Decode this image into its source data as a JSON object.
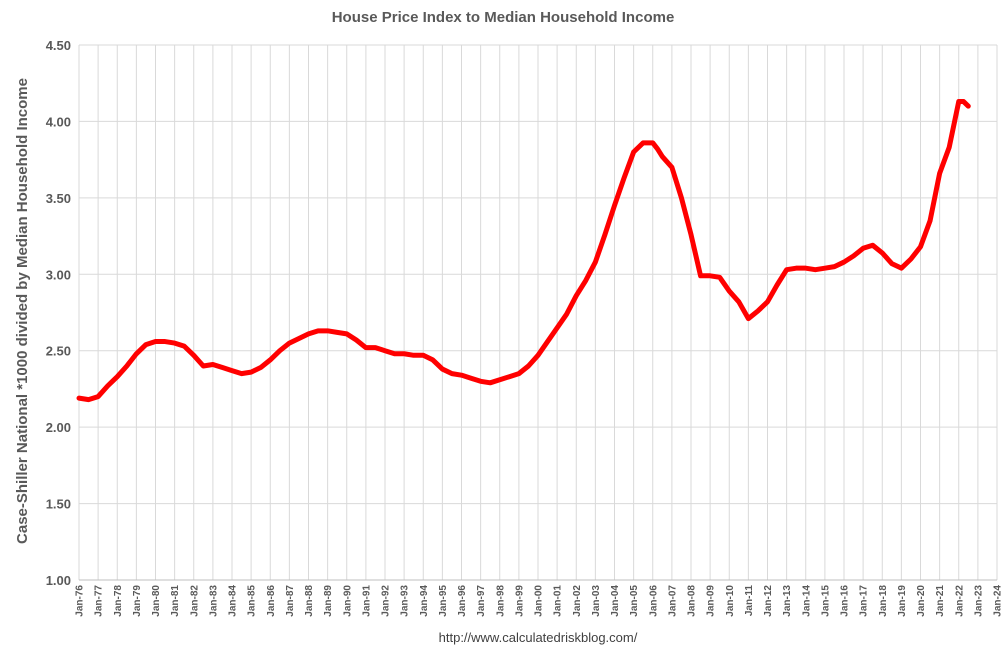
{
  "chart_data": {
    "type": "line",
    "title": "House Price Index to Median Household Income",
    "ylabel": "Case-Shiller National *1000 divided by Median Household Income",
    "xlabel": "",
    "source_text": "http://www.calculatedriskblog.com/",
    "ylim": [
      1.0,
      4.5
    ],
    "yticks": [
      "1.00",
      "1.50",
      "2.00",
      "2.50",
      "3.00",
      "3.50",
      "4.00",
      "4.50"
    ],
    "xticks": [
      "Jan-76",
      "Jan-77",
      "Jan-78",
      "Jan-79",
      "Jan-80",
      "Jan-81",
      "Jan-82",
      "Jan-83",
      "Jan-84",
      "Jan-85",
      "Jan-86",
      "Jan-87",
      "Jan-88",
      "Jan-89",
      "Jan-90",
      "Jan-91",
      "Jan-92",
      "Jan-93",
      "Jan-94",
      "Jan-95",
      "Jan-96",
      "Jan-97",
      "Jan-98",
      "Jan-99",
      "Jan-00",
      "Jan-01",
      "Jan-02",
      "Jan-03",
      "Jan-04",
      "Jan-05",
      "Jan-06",
      "Jan-07",
      "Jan-08",
      "Jan-09",
      "Jan-10",
      "Jan-11",
      "Jan-12",
      "Jan-13",
      "Jan-14",
      "Jan-15",
      "Jan-16",
      "Jan-17",
      "Jan-18",
      "Jan-19",
      "Jan-20",
      "Jan-21",
      "Jan-22",
      "Jan-23",
      "Jan-24"
    ],
    "grid": true,
    "legend": "none",
    "line_color": "#ff0000",
    "series": [
      {
        "x": [
          1976.0,
          1976.5,
          1977.0,
          1977.5,
          1978.0,
          1978.5,
          1979.0,
          1979.5,
          1980.0,
          1980.5,
          1981.0,
          1981.5,
          1982.0,
          1982.5,
          1983.0,
          1983.5,
          1984.0,
          1984.5,
          1985.0,
          1985.5,
          1986.0,
          1986.5,
          1987.0,
          1987.5,
          1988.0,
          1988.5,
          1989.0,
          1989.5,
          1990.0,
          1990.5,
          1991.0,
          1991.5,
          1992.0,
          1992.5,
          1993.0,
          1993.5,
          1994.0,
          1994.5,
          1995.0,
          1995.5,
          1996.0,
          1996.5,
          1997.0,
          1997.5,
          1998.0,
          1998.5,
          1999.0,
          1999.5,
          2000.0,
          2000.5,
          2001.0,
          2001.5,
          2002.0,
          2002.5,
          2003.0,
          2003.5,
          2004.0,
          2004.5,
          2005.0,
          2005.5,
          2006.0,
          2006.25,
          2006.5,
          2007.0,
          2007.5,
          2008.0,
          2008.5,
          2009.0,
          2009.5,
          2010.0,
          2010.5,
          2011.0,
          2011.5,
          2012.0,
          2012.5,
          2013.0,
          2013.5,
          2014.0,
          2014.5,
          2015.0,
          2015.5,
          2016.0,
          2016.5,
          2017.0,
          2017.5,
          2018.0,
          2018.5,
          2019.0,
          2019.5,
          2020.0,
          2020.5,
          2021.0,
          2021.5,
          2022.0,
          2022.25,
          2022.5
        ],
        "values": [
          2.19,
          2.18,
          2.2,
          2.27,
          2.33,
          2.4,
          2.48,
          2.54,
          2.56,
          2.56,
          2.55,
          2.53,
          2.47,
          2.4,
          2.41,
          2.39,
          2.37,
          2.35,
          2.36,
          2.39,
          2.44,
          2.5,
          2.55,
          2.58,
          2.61,
          2.63,
          2.63,
          2.62,
          2.61,
          2.57,
          2.52,
          2.52,
          2.5,
          2.48,
          2.48,
          2.47,
          2.47,
          2.44,
          2.38,
          2.35,
          2.34,
          2.32,
          2.3,
          2.29,
          2.31,
          2.33,
          2.35,
          2.4,
          2.47,
          2.56,
          2.65,
          2.74,
          2.86,
          2.96,
          3.08,
          3.26,
          3.45,
          3.63,
          3.8,
          3.86,
          3.86,
          3.82,
          3.77,
          3.7,
          3.5,
          3.26,
          2.99,
          2.99,
          2.98,
          2.89,
          2.82,
          2.71,
          2.76,
          2.82,
          2.93,
          3.03,
          3.04,
          3.04,
          3.03,
          3.04,
          3.05,
          3.08,
          3.12,
          3.17,
          3.19,
          3.14,
          3.07,
          3.04,
          3.1,
          3.18,
          3.35,
          3.66,
          3.83,
          4.13,
          4.13,
          4.1
        ]
      }
    ]
  }
}
